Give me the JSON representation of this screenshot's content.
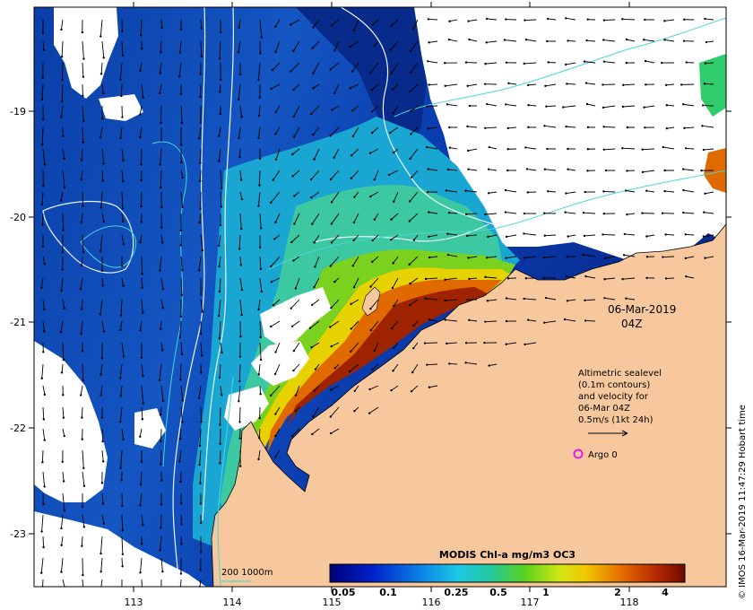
{
  "map": {
    "lon_range": [
      112,
      119
    ],
    "lat_range": [
      -23.5,
      -18
    ],
    "lon_ticks": [
      "113",
      "114",
      "115",
      "116",
      "117",
      "118"
    ],
    "lat_ticks": [
      "-19",
      "-20",
      "-21",
      "-22",
      "-23"
    ]
  },
  "date": {
    "day": "06-Mar-2019",
    "time": "04Z"
  },
  "legend": {
    "lines": [
      "Altimetric sealevel",
      "(0.1m contours)",
      "and velocity for",
      "06-Mar 04Z",
      "0.5m/s (1kt 24h)"
    ],
    "argo_label": "Argo 0",
    "bathymetry_label": "200  1000m"
  },
  "colorbar": {
    "title": "MODIS Chl-a mg/m3 OC3",
    "ticks": [
      "0.05",
      "0.1",
      "0.25",
      "0.5",
      "1",
      "2",
      "4"
    ]
  },
  "credit": "© IMOS 16-Mar-2019 11:47:29 Hobart time",
  "colors": {
    "land": "#f7c89d",
    "contour": "#e8f4ff",
    "isobath": "#4ad6d6",
    "argo": "#e020e0",
    "chl_low": "#0a2a8c",
    "chl_high": "#7a1a00"
  }
}
